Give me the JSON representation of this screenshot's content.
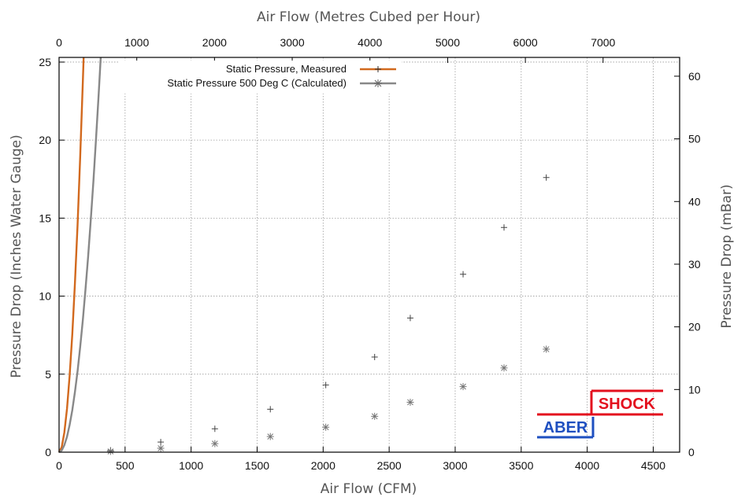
{
  "chart_data": {
    "type": "line",
    "x_bottom_label": "Air Flow (CFM)",
    "x_top_label": "Air Flow (Metres Cubed per Hour)",
    "y_left_label": "Pressure Drop (Inches Water Gauge)",
    "y_right_label": "Pressure Drop (mBar)",
    "xlim": [
      0,
      4700
    ],
    "ylim": [
      0,
      25.3
    ],
    "x_top_lim": [
      0,
      7985
    ],
    "y_right_lim": [
      0,
      63
    ],
    "x_ticks": [
      0,
      500,
      1000,
      1500,
      2000,
      2500,
      3000,
      3500,
      4000,
      4500
    ],
    "y_ticks": [
      0,
      5,
      10,
      15,
      20,
      25
    ],
    "x_top_ticks": [
      0,
      1000,
      2000,
      3000,
      4000,
      5000,
      6000,
      7000
    ],
    "y_right_ticks": [
      0,
      10,
      20,
      30,
      40,
      50,
      60
    ],
    "grid": true,
    "legend_position": "top-center",
    "series": [
      {
        "name": "Static Pressure, Measured",
        "color": "#d2691e",
        "marker": "plus",
        "fit": {
          "coef": 0.000951,
          "exp": 1.95
        },
        "points": [
          {
            "x": 390,
            "y": 0.12
          },
          {
            "x": 770,
            "y": 0.65
          },
          {
            "x": 1180,
            "y": 1.5
          },
          {
            "x": 1600,
            "y": 2.75
          },
          {
            "x": 2020,
            "y": 4.3
          },
          {
            "x": 2390,
            "y": 6.1
          },
          {
            "x": 2660,
            "y": 8.6
          },
          {
            "x": 3060,
            "y": 11.4
          },
          {
            "x": 3370,
            "y": 14.4
          },
          {
            "x": 3690,
            "y": 17.6
          }
        ]
      },
      {
        "name": "Static Pressure 500 Deg C (Calculated)",
        "color": "#888888",
        "marker": "star",
        "fit": {
          "coef": 0.000339,
          "exp": 1.95
        },
        "points": [
          {
            "x": 390,
            "y": 0.05
          },
          {
            "x": 770,
            "y": 0.25
          },
          {
            "x": 1180,
            "y": 0.55
          },
          {
            "x": 1600,
            "y": 1.0
          },
          {
            "x": 2020,
            "y": 1.6
          },
          {
            "x": 2390,
            "y": 2.3
          },
          {
            "x": 2660,
            "y": 3.2
          },
          {
            "x": 3060,
            "y": 4.2
          },
          {
            "x": 3370,
            "y": 5.4
          },
          {
            "x": 3690,
            "y": 6.6
          }
        ]
      }
    ]
  },
  "logo": {
    "part1": "ABER",
    "part2": "SHOCK",
    "color_blue": "#1e4fc0",
    "color_red": "#e3101e"
  }
}
